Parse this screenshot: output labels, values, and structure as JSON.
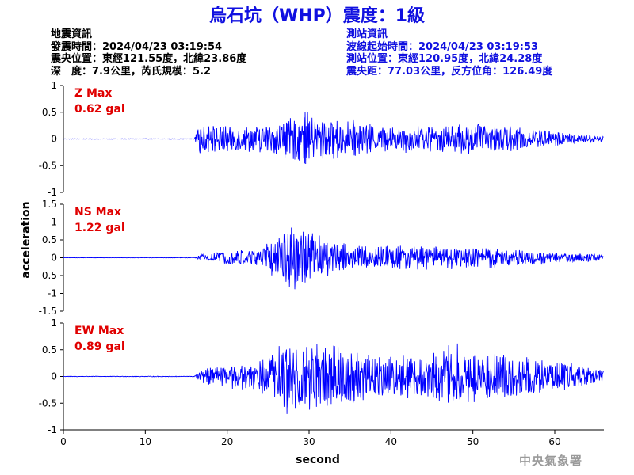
{
  "title": "烏石坑（WHP）震度：1級",
  "event_info": {
    "heading": "地震資訊",
    "origin_time": "發震時間：2024/04/23 03:19:54",
    "epicenter": "震央位置：東經121.55度，北緯23.86度",
    "depth_magnitude": "深　度：7.9公里，芮氏規模：5.2"
  },
  "station_info": {
    "heading": "測站資訊",
    "wave_start": "波線起始時間：2024/04/23 03:19:53",
    "location": "測站位置：東經120.95度，北緯24.28度",
    "distance": "震央距：77.03公里，反方位角：126.49度"
  },
  "credit": "中央氣象署",
  "colors": {
    "trace": "#0000ff",
    "title": "#1010e0",
    "peak": "#e00000"
  },
  "chart_data": {
    "type": "line",
    "xlabel": "second",
    "ylabel": "acceleration",
    "xlim": [
      0,
      66
    ],
    "xticks": [
      0,
      10,
      20,
      30,
      40,
      50,
      60
    ],
    "panels": [
      {
        "name": "Z Max",
        "peak": "0.62 gal",
        "ylim": [
          -1,
          1
        ],
        "yticks": [
          1,
          0.5,
          0,
          -0.5,
          -1
        ],
        "ytick_labels": [
          "1",
          "0.5",
          "0",
          "-0.5",
          "-1"
        ],
        "onset_s": 16.2,
        "envelope": [
          [
            0,
            0.005
          ],
          [
            16,
            0.005
          ],
          [
            16.5,
            0.25
          ],
          [
            19,
            0.3
          ],
          [
            22,
            0.25
          ],
          [
            26,
            0.32
          ],
          [
            28,
            0.42
          ],
          [
            30,
            0.5
          ],
          [
            31,
            0.42
          ],
          [
            34,
            0.38
          ],
          [
            40,
            0.25
          ],
          [
            46,
            0.28
          ],
          [
            50,
            0.3
          ],
          [
            53,
            0.26
          ],
          [
            58,
            0.2
          ],
          [
            62,
            0.1
          ],
          [
            66,
            0.06
          ]
        ]
      },
      {
        "name": "NS Max",
        "peak": "1.22 gal",
        "ylim": [
          -1.5,
          1.5
        ],
        "yticks": [
          1.5,
          1,
          0.5,
          0,
          -0.5,
          -1,
          -1.5
        ],
        "ytick_labels": [
          "1.5",
          "1",
          "0.5",
          "0",
          "-0.5",
          "-1",
          "-1.5"
        ],
        "onset_s": 16.3,
        "envelope": [
          [
            0,
            0.005
          ],
          [
            16,
            0.008
          ],
          [
            17,
            0.12
          ],
          [
            20,
            0.2
          ],
          [
            24,
            0.3
          ],
          [
            26,
            0.6
          ],
          [
            28,
            1.05
          ],
          [
            30,
            0.9
          ],
          [
            31,
            0.75
          ],
          [
            33,
            0.45
          ],
          [
            35,
            0.35
          ],
          [
            40,
            0.35
          ],
          [
            45,
            0.35
          ],
          [
            50,
            0.33
          ],
          [
            55,
            0.25
          ],
          [
            60,
            0.15
          ],
          [
            66,
            0.1
          ]
        ]
      },
      {
        "name": "EW Max",
        "peak": "0.89 gal",
        "ylim": [
          -1,
          1
        ],
        "yticks": [
          1,
          0.5,
          0,
          -0.5,
          -1
        ],
        "ytick_labels": [
          "1",
          "0.5",
          "0",
          "-0.5",
          "-1"
        ],
        "onset_s": 16.2,
        "envelope": [
          [
            0,
            0.005
          ],
          [
            16,
            0.006
          ],
          [
            17,
            0.15
          ],
          [
            20,
            0.22
          ],
          [
            24,
            0.3
          ],
          [
            26,
            0.55
          ],
          [
            27,
            0.72
          ],
          [
            30,
            0.65
          ],
          [
            34,
            0.55
          ],
          [
            40,
            0.42
          ],
          [
            45,
            0.45
          ],
          [
            48,
            0.62
          ],
          [
            50,
            0.5
          ],
          [
            55,
            0.42
          ],
          [
            60,
            0.3
          ],
          [
            66,
            0.12
          ]
        ]
      }
    ]
  }
}
